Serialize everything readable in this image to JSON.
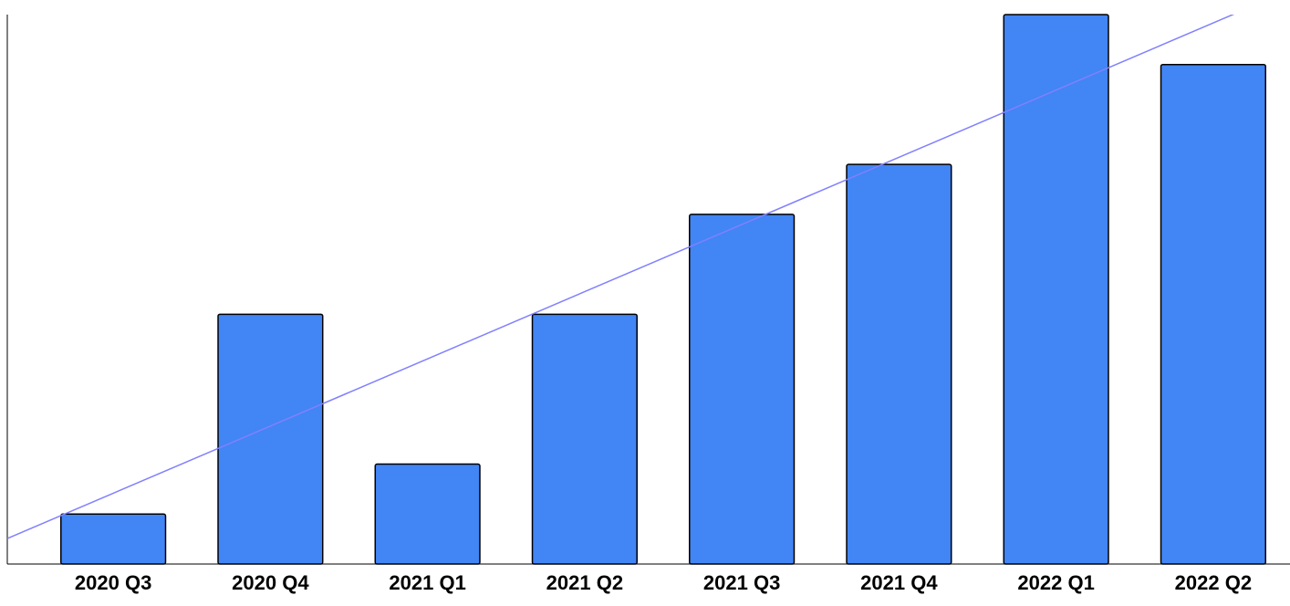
{
  "chart_data": {
    "type": "bar",
    "categories": [
      "2020 Q3",
      "2020 Q4",
      "2021 Q1",
      "2021 Q2",
      "2021 Q3",
      "2021 Q4",
      "2022 Q1",
      "2022 Q2"
    ],
    "values": [
      1,
      5,
      2,
      5,
      7,
      8,
      11,
      10
    ],
    "color": "#4285f4",
    "ylim": [
      0,
      11
    ],
    "trendline": true,
    "trendline_color": "#8080ff"
  }
}
